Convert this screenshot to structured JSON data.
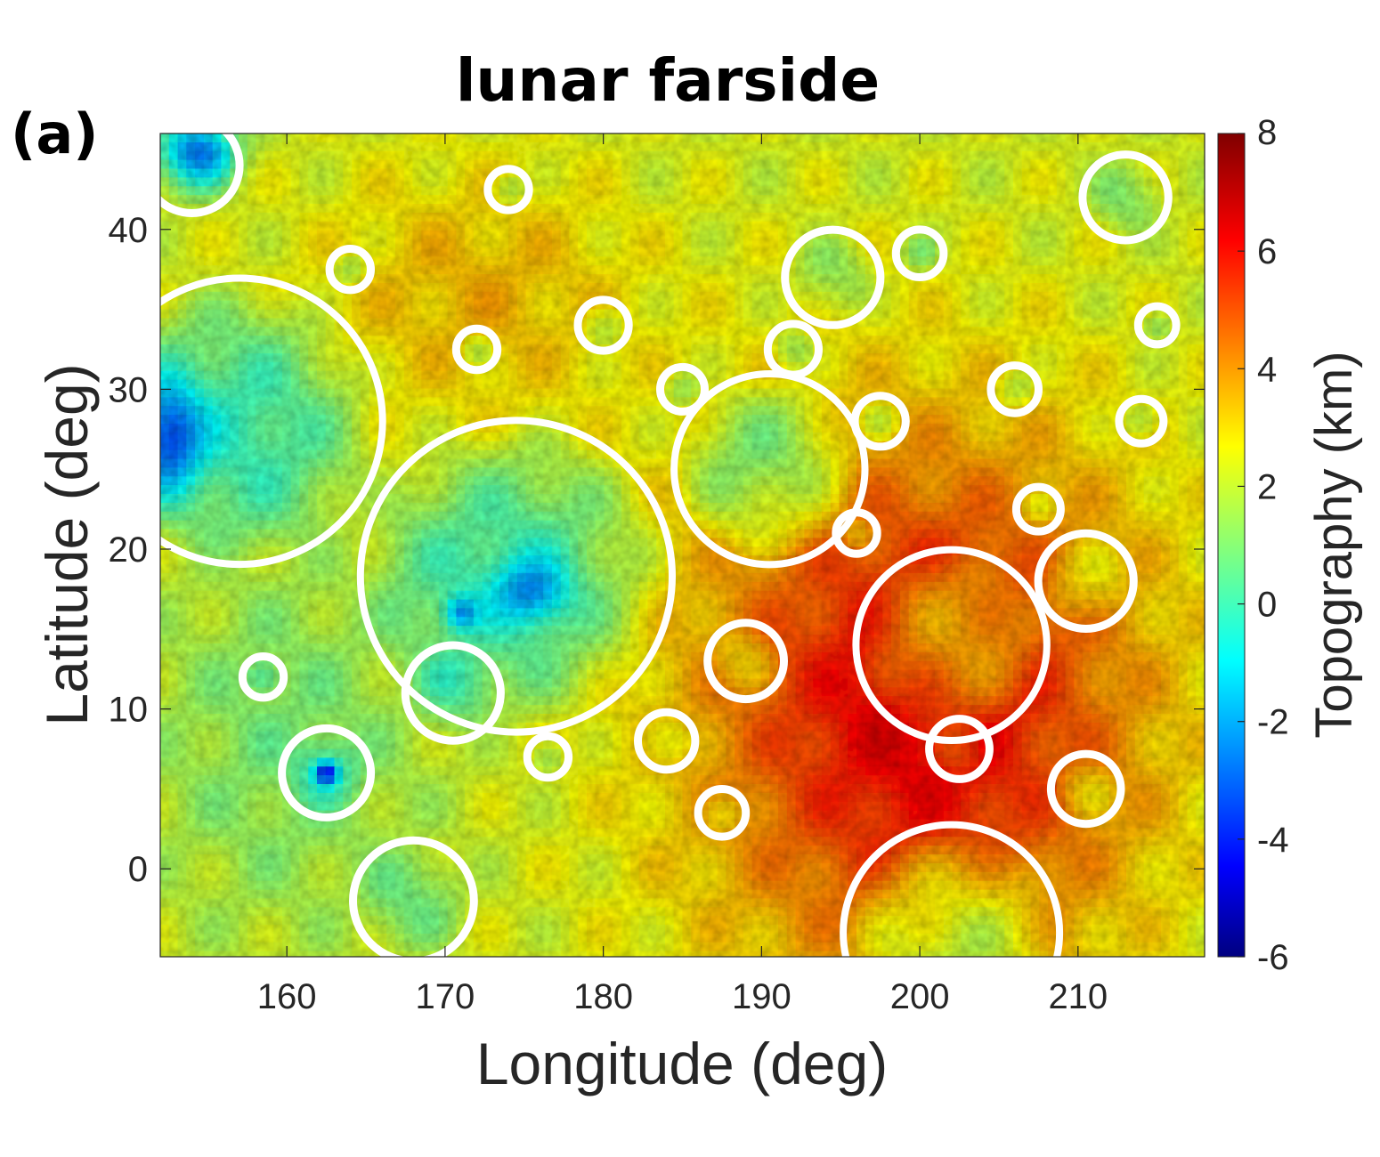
{
  "panel_label": "(a)",
  "chart_data": {
    "type": "heatmap",
    "title": "lunar farside",
    "xlabel": "Longitude (deg)",
    "ylabel": "Latitude (deg)",
    "xlim": [
      152,
      218
    ],
    "ylim": [
      -5.5,
      46
    ],
    "xticks": [
      160,
      170,
      180,
      190,
      200,
      210
    ],
    "yticks": [
      0,
      10,
      20,
      30,
      40
    ],
    "grid": false,
    "colorbar": {
      "label": "Topography (km)",
      "range": [
        -6,
        8
      ],
      "ticks": [
        8,
        6,
        4,
        2,
        0,
        -2,
        -4,
        -6
      ],
      "colormap": "jet"
    },
    "overlay": {
      "description": "white circles marking crater rims",
      "craters": [
        {
          "lon": 174.5,
          "lat": 18.3,
          "r": 9.8
        },
        {
          "lon": 157.0,
          "lat": 28.0,
          "r": 9.0
        },
        {
          "lon": 190.5,
          "lat": 25.0,
          "r": 6.0
        },
        {
          "lon": 202.0,
          "lat": 14.0,
          "r": 6.0
        },
        {
          "lon": 202.0,
          "lat": -4.0,
          "r": 6.8
        },
        {
          "lon": 168.0,
          "lat": -2.0,
          "r": 3.8
        },
        {
          "lon": 162.5,
          "lat": 6.0,
          "r": 2.8
        },
        {
          "lon": 170.5,
          "lat": 11.0,
          "r": 3.0
        },
        {
          "lon": 189.0,
          "lat": 13.0,
          "r": 2.4
        },
        {
          "lon": 210.5,
          "lat": 18.0,
          "r": 3.0
        },
        {
          "lon": 210.5,
          "lat": 5.0,
          "r": 2.2
        },
        {
          "lon": 213.0,
          "lat": 42.0,
          "r": 2.7
        },
        {
          "lon": 194.5,
          "lat": 37.0,
          "r": 3.0
        },
        {
          "lon": 154.0,
          "lat": 44.0,
          "r": 3.0
        },
        {
          "lon": 202.5,
          "lat": 7.5,
          "r": 1.9
        },
        {
          "lon": 172.0,
          "lat": 32.5,
          "r": 1.3
        },
        {
          "lon": 192.0,
          "lat": 32.5,
          "r": 1.6
        },
        {
          "lon": 174.0,
          "lat": 42.5,
          "r": 1.3
        },
        {
          "lon": 184.0,
          "lat": 8.0,
          "r": 1.8
        },
        {
          "lon": 180.0,
          "lat": 34.0,
          "r": 1.6
        },
        {
          "lon": 200.0,
          "lat": 38.5,
          "r": 1.5
        },
        {
          "lon": 185.0,
          "lat": 30.0,
          "r": 1.4
        },
        {
          "lon": 197.5,
          "lat": 28.0,
          "r": 1.6
        },
        {
          "lon": 206.0,
          "lat": 30.0,
          "r": 1.5
        },
        {
          "lon": 176.5,
          "lat": 7.0,
          "r": 1.3
        },
        {
          "lon": 187.5,
          "lat": 3.5,
          "r": 1.5
        },
        {
          "lon": 214.0,
          "lat": 28.0,
          "r": 1.4
        },
        {
          "lon": 164.0,
          "lat": 37.5,
          "r": 1.3
        },
        {
          "lon": 158.5,
          "lat": 12.0,
          "r": 1.3
        },
        {
          "lon": 196.0,
          "lat": 21.0,
          "r": 1.3
        },
        {
          "lon": 215.0,
          "lat": 34.0,
          "r": 1.2
        },
        {
          "lon": 207.5,
          "lat": 22.5,
          "r": 1.4
        }
      ]
    }
  }
}
